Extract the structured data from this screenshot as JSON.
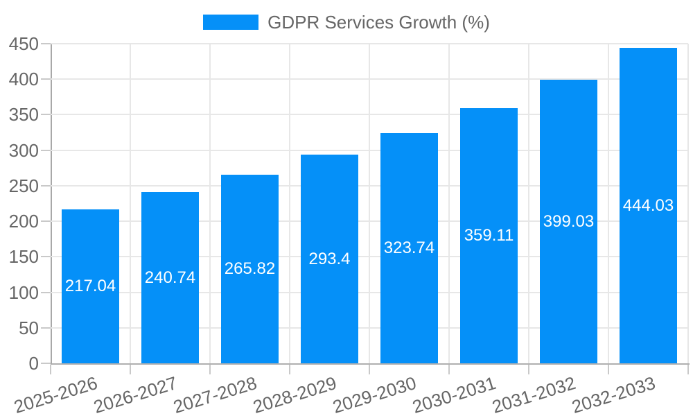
{
  "legend": {
    "label": "GDPR Services Growth (%)"
  },
  "chart_data": {
    "type": "bar",
    "title": "GDPR Services Growth (%)",
    "categories": [
      "2025-2026",
      "2026-2027",
      "2027-2028",
      "2028-2029",
      "2029-2030",
      "2030-2031",
      "2031-2032",
      "2032-2033"
    ],
    "values": [
      217.04,
      240.74,
      265.82,
      293.4,
      323.74,
      359.11,
      399.03,
      444.03
    ],
    "value_labels": [
      "217.04",
      "240.74",
      "265.82",
      "293.4",
      "323.74",
      "359.11",
      "399.03",
      "444.03"
    ],
    "xlabel": "",
    "ylabel": "",
    "ylim": [
      0,
      450
    ],
    "yticks": [
      0,
      50,
      100,
      150,
      200,
      250,
      300,
      350,
      400,
      450
    ],
    "grid": true,
    "legend_position": "top",
    "x_label_rotation_deg": -17,
    "colors": {
      "bar": "#0590f8",
      "bar_value_text": "#ffffff",
      "grid": "#e7e7e7",
      "axis": "#a8a8a8",
      "tick_text": "#666666",
      "legend_text": "#666666"
    }
  }
}
